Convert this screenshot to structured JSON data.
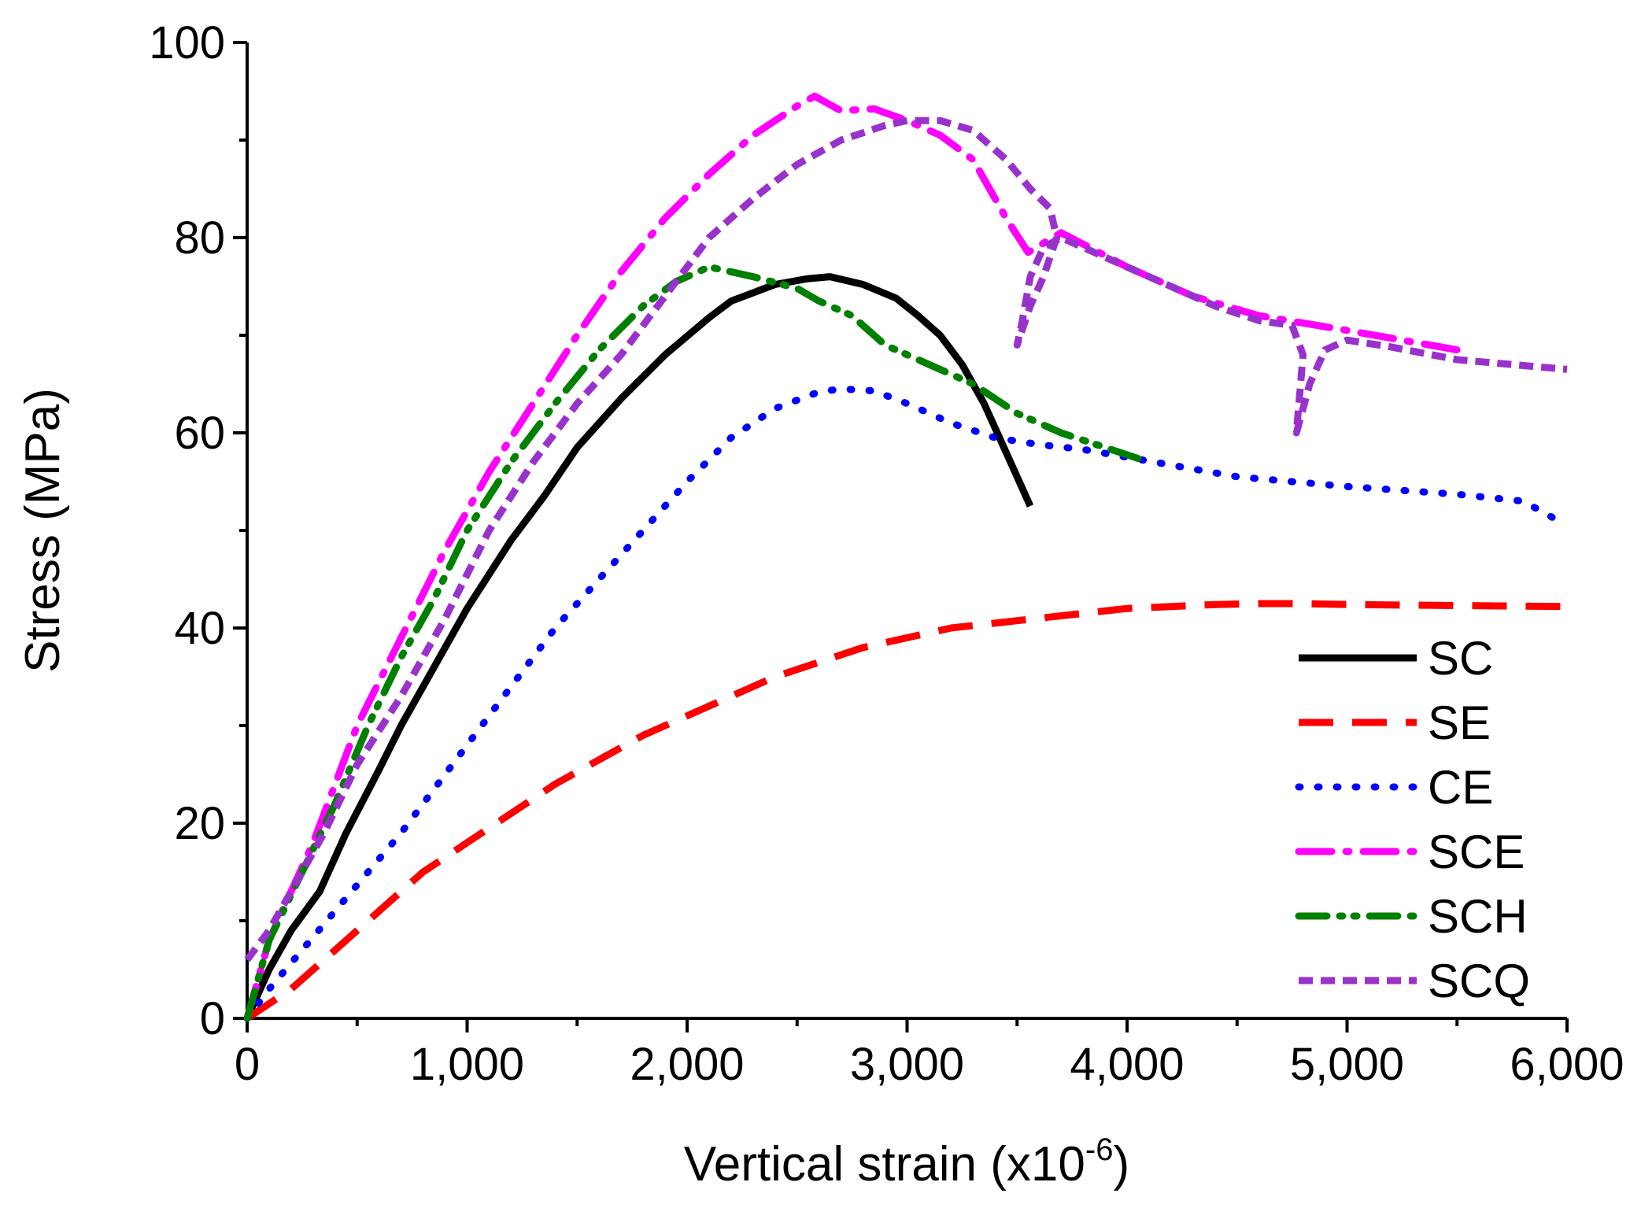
{
  "chart_data": {
    "type": "line",
    "title": "",
    "xlabel": "Vertical strain (x10",
    "xlabel_exp": "-6",
    "xlabel_close": ")",
    "ylabel": "Stress (MPa)",
    "xlim": [
      0,
      6000
    ],
    "ylim": [
      0,
      100
    ],
    "x_ticks": [
      0,
      1000,
      2000,
      3000,
      4000,
      5000,
      6000
    ],
    "x_tick_labels": [
      "0",
      "1,000",
      "2,000",
      "3,000",
      "4,000",
      "5,000",
      "6,000"
    ],
    "y_ticks": [
      0,
      20,
      40,
      60,
      80,
      100
    ],
    "y_tick_labels": [
      "0",
      "20",
      "40",
      "60",
      "80",
      "100"
    ],
    "grid": false,
    "legend_position": "bottom-right",
    "series": [
      {
        "name": "SC",
        "color": "#000000",
        "dash": "solid",
        "x": [
          0,
          100,
          200,
          330,
          450,
          600,
          700,
          800,
          1000,
          1200,
          1350,
          1500,
          1700,
          1900,
          2100,
          2200,
          2400,
          2550,
          2650,
          2800,
          2950,
          3050,
          3150,
          3250,
          3350,
          3450,
          3560
        ],
        "y": [
          0,
          5,
          9,
          13,
          19,
          25.5,
          30,
          34,
          42,
          49,
          53.5,
          58.5,
          63.5,
          68,
          71.8,
          73.5,
          75.2,
          75.8,
          76,
          75.2,
          73.8,
          72,
          70,
          67,
          63,
          58,
          52.5
        ]
      },
      {
        "name": "SE",
        "color": "#ff0000",
        "dash": "dashed",
        "x": [
          0,
          200,
          400,
          600,
          800,
          1000,
          1200,
          1400,
          1600,
          1800,
          2000,
          2200,
          2400,
          2600,
          2800,
          3000,
          3200,
          3400,
          3600,
          3800,
          4000,
          4200,
          4400,
          4600,
          4800,
          5000,
          5500,
          6000
        ],
        "y": [
          0,
          3,
          7,
          11,
          15,
          18,
          21,
          24,
          26.5,
          29,
          31,
          33,
          35,
          36.5,
          38,
          39,
          40,
          40.5,
          41,
          41.5,
          42,
          42.2,
          42.4,
          42.5,
          42.5,
          42.4,
          42.3,
          42.2
        ]
      },
      {
        "name": "CE",
        "color": "#0000ff",
        "dash": "dotted",
        "x": [
          0,
          100,
          250,
          400,
          550,
          700,
          850,
          1000,
          1200,
          1400,
          1600,
          1800,
          2000,
          2200,
          2400,
          2600,
          2700,
          2850,
          3000,
          3200,
          3400,
          3600,
          3800,
          4000,
          4500,
          5000,
          5500,
          5800,
          6000
        ],
        "y": [
          0,
          3,
          7,
          11,
          15,
          19,
          23.5,
          28,
          34,
          40,
          45,
          50,
          55,
          59.5,
          62.5,
          64.2,
          64.5,
          64.3,
          63,
          61,
          59.5,
          58.8,
          58.3,
          57.5,
          55.5,
          54.5,
          53.7,
          53,
          50.5
        ]
      },
      {
        "name": "SCE",
        "color": "#ff00ff",
        "dash": "dashdot",
        "x": [
          0,
          100,
          200,
          300,
          500,
          700,
          900,
          1100,
          1300,
          1500,
          1700,
          1900,
          2100,
          2300,
          2500,
          2580,
          2700,
          2850,
          3000,
          3150,
          3300,
          3450,
          3550,
          3700,
          4000,
          4300,
          4600,
          5000,
          5500
        ],
        "y": [
          0,
          8,
          13,
          18,
          30,
          39,
          48,
          56,
          63,
          70,
          76.5,
          82,
          86.5,
          90.5,
          93.5,
          94.5,
          93,
          93.2,
          92,
          90.5,
          88,
          82,
          78.5,
          80.5,
          77,
          74,
          72,
          70.5,
          68.5
        ]
      },
      {
        "name": "SCH",
        "color": "#008000",
        "dash": "dashdotdot",
        "x": [
          0,
          100,
          250,
          400,
          550,
          700,
          850,
          1000,
          1200,
          1400,
          1600,
          1800,
          1950,
          2100,
          2300,
          2500,
          2600,
          2750,
          2900,
          3100,
          3300,
          3500,
          3700,
          3900,
          4100
        ],
        "y": [
          0,
          8,
          15,
          22,
          30,
          37,
          43,
          50,
          57,
          63,
          68.5,
          73,
          75.5,
          77,
          76,
          74.8,
          73.5,
          72,
          69,
          67,
          65,
          62,
          60,
          58.5,
          57
        ]
      },
      {
        "name": "SCQ",
        "color": "#9932cc",
        "dash": "shortdash",
        "x": [
          0,
          100,
          200,
          350,
          500,
          700,
          900,
          1100,
          1300,
          1500,
          1700,
          1900,
          2100,
          2300,
          2500,
          2700,
          2900,
          3000,
          3150,
          3300,
          3450,
          3560,
          3650,
          3680,
          3620,
          3560,
          3500,
          3520,
          3560,
          3620,
          3700,
          3800,
          4000,
          4200,
          4400,
          4600,
          4750,
          4800,
          4770,
          4830,
          4900,
          5000,
          5200,
          5500,
          6000
        ],
        "y": [
          6,
          9,
          13,
          19,
          26,
          33,
          41,
          50,
          57,
          63,
          68,
          74,
          80,
          84,
          87.5,
          90,
          91.5,
          92,
          92,
          91,
          88,
          85,
          83,
          80,
          76,
          73,
          69,
          71,
          76,
          79,
          80,
          79,
          77,
          75,
          73,
          71.5,
          71,
          68,
          60,
          65,
          68.5,
          69.5,
          68.8,
          67.5,
          66.5
        ]
      }
    ]
  }
}
